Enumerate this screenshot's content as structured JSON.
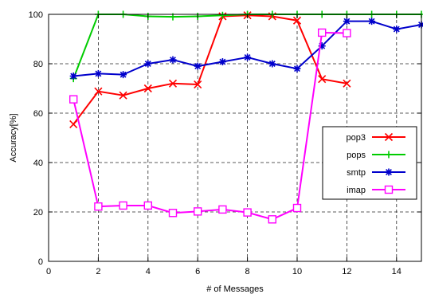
{
  "chart_data": {
    "type": "line",
    "xlabel": "# of Messages",
    "ylabel": "Accuracy[%]",
    "xlim": [
      0,
      15
    ],
    "ylim": [
      0,
      100
    ],
    "xticks": [
      0,
      2,
      4,
      6,
      8,
      10,
      12,
      14
    ],
    "yticks": [
      0,
      20,
      40,
      60,
      80,
      100
    ],
    "grid": true,
    "legend_position": "right",
    "series": [
      {
        "name": "pop3",
        "color": "#ff0000",
        "marker": "x",
        "x": [
          1,
          2,
          3,
          4,
          5,
          6,
          7,
          8,
          9,
          10,
          11,
          12
        ],
        "values": [
          55.5,
          68.8,
          67.2,
          70,
          72,
          71.6,
          99.2,
          99.6,
          99.2,
          97.5,
          73.8,
          72
        ]
      },
      {
        "name": "pops",
        "color": "#00cc00",
        "marker": "plus",
        "x": [
          1,
          2,
          3,
          4,
          5,
          6,
          7,
          8,
          9,
          10,
          11,
          12,
          13,
          14,
          15
        ],
        "values": [
          74,
          100,
          100,
          99.2,
          99,
          99.2,
          99.6,
          100,
          100,
          100,
          100,
          100,
          100,
          100,
          100
        ]
      },
      {
        "name": "smtp",
        "color": "#0000cc",
        "marker": "star",
        "x": [
          1,
          2,
          3,
          4,
          5,
          6,
          7,
          8,
          9,
          10,
          11,
          12,
          13,
          14,
          15
        ],
        "values": [
          75,
          76,
          75.6,
          80,
          81.6,
          79,
          80.8,
          82.6,
          80,
          78,
          87.2,
          97.2,
          97.2,
          94,
          95.8
        ]
      },
      {
        "name": "imap",
        "color": "#ff00ff",
        "marker": "square",
        "x": [
          1,
          2,
          3,
          4,
          5,
          6,
          7,
          8,
          9,
          10,
          11,
          12
        ],
        "values": [
          65.6,
          22.2,
          22.6,
          22.6,
          19.6,
          20.2,
          21,
          19.8,
          17,
          21.6,
          92.6,
          92.4
        ]
      }
    ]
  }
}
